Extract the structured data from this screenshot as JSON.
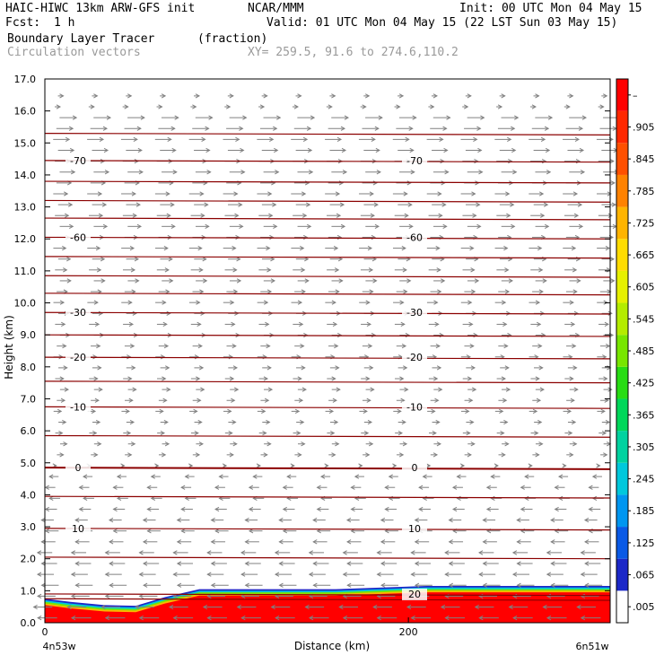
{
  "header": {
    "model": "HAIC-HIWC 13km ARW-GFS init",
    "org": "NCAR/MMM",
    "init": "Init: 00 UTC Mon 04 May 15",
    "fcst_label": "Fcst:",
    "fcst_value": "1 h",
    "valid": "Valid: 01 UTC Mon 04 May 15 (22 LST Sun 03 May 15)",
    "field1": "Boundary Layer Tracer",
    "field1_units": "(fraction)",
    "field2": "Circulation vectors",
    "xy": "XY= 259.5, 91.6 to 274.6,110.2"
  },
  "chart_data": {
    "type": "heatmap",
    "title": "Boundary Layer Tracer",
    "units": "(fraction)",
    "xlabel": "Distance (km)",
    "ylabel": "Height (km)",
    "xlim": [
      0,
      311
    ],
    "ylim": [
      0,
      17
    ],
    "xticks": [
      {
        "v": 0,
        "label": "0"
      },
      {
        "v": 200,
        "label": "200"
      }
    ],
    "xends": {
      "left": "4n53w",
      "right": "6n51w"
    },
    "yticks": [
      "0.0",
      "1.0",
      "2.0",
      "3.0",
      "4.0",
      "5.0",
      "6.0",
      "7.0",
      "8.0",
      "9.0",
      "10.0",
      "11.0",
      "12.0",
      "13.0",
      "14.0",
      "15.0",
      "16.0",
      "17.0"
    ],
    "colorbar": {
      "labels": [
        ".005",
        ".065",
        ".125",
        ".185",
        ".245",
        ".305",
        ".365",
        ".425",
        ".485",
        ".545",
        ".605",
        ".665",
        ".725",
        ".785",
        ".845",
        ".905",
        "–"
      ],
      "colors": [
        "#ffffff",
        "#1c28c8",
        "#0a5ae6",
        "#0096f0",
        "#00c8dc",
        "#00d2a0",
        "#00d75a",
        "#28dc14",
        "#78e600",
        "#b4ec00",
        "#e6f000",
        "#ffdc00",
        "#ffb400",
        "#ff8200",
        "#ff5000",
        "#ff2800",
        "#ff0000"
      ]
    },
    "tracer_layer": {
      "color": "#ff0000",
      "top_profile": [
        {
          "x": 0,
          "h": 0.55
        },
        {
          "x": 14,
          "h": 0.45
        },
        {
          "x": 33,
          "h": 0.35
        },
        {
          "x": 50,
          "h": 0.33
        },
        {
          "x": 66,
          "h": 0.6
        },
        {
          "x": 85,
          "h": 0.85
        },
        {
          "x": 110,
          "h": 0.85
        },
        {
          "x": 160,
          "h": 0.85
        },
        {
          "x": 210,
          "h": 0.95
        },
        {
          "x": 260,
          "h": 0.95
        },
        {
          "x": 311,
          "h": 0.95
        }
      ]
    },
    "temperature_contours": {
      "color": "#8b0000",
      "levels": [
        {
          "label": "-70",
          "h": 14.45
        },
        {
          "label": "-60",
          "h": 12.05
        },
        {
          "label": "-30",
          "h": 9.7
        },
        {
          "label": "-20",
          "h": 8.3
        },
        {
          "label": "-10",
          "h": 6.75
        },
        {
          "label": "0",
          "h": 4.85
        },
        {
          "label": "10",
          "h": 2.95
        },
        {
          "label": "20",
          "h": 0.9
        }
      ],
      "unlabeled_heights": [
        15.3,
        13.8,
        13.2,
        12.65,
        11.45,
        10.85,
        10.3,
        9.0,
        7.55,
        5.85,
        3.95,
        2.05,
        0.75
      ]
    },
    "vectors": {
      "color": "#808080",
      "upper_direction": "east",
      "lower_direction": "west"
    }
  }
}
